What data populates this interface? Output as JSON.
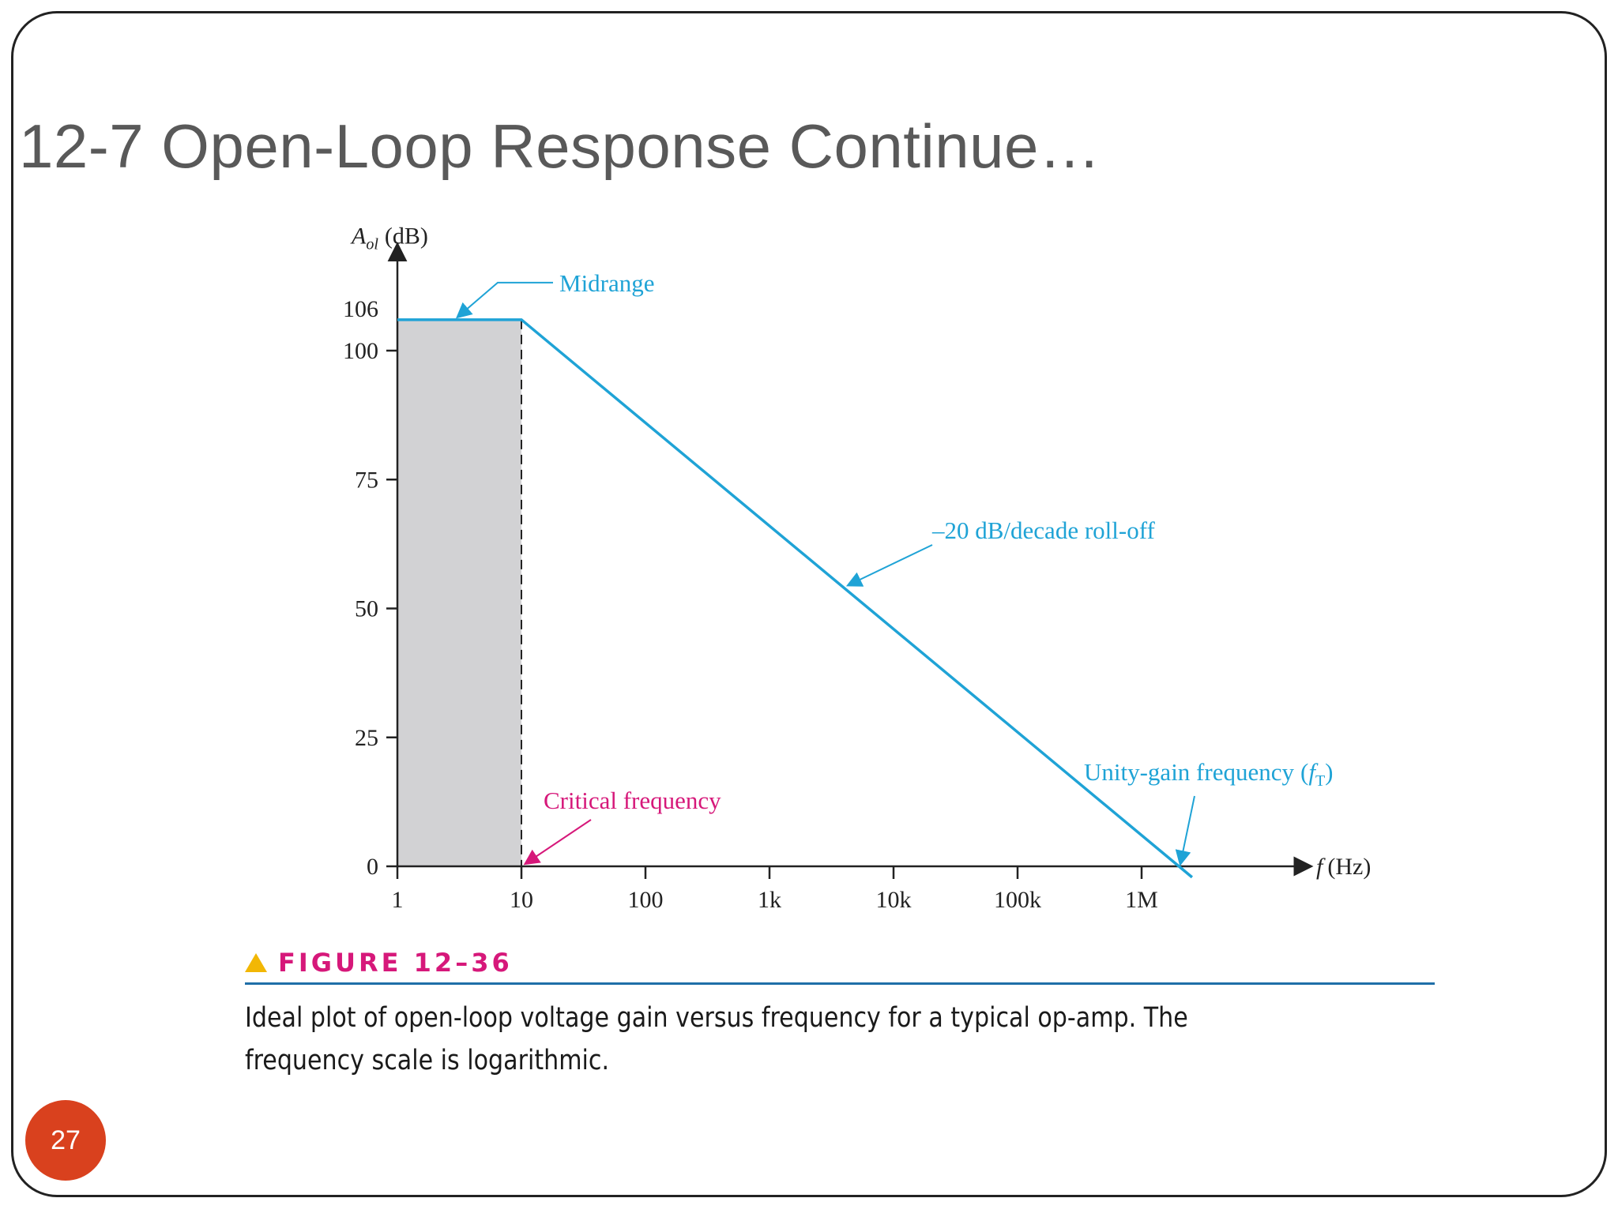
{
  "slide": {
    "title": "12-7  Open-Loop Response Continue…",
    "page_number": "27"
  },
  "figure": {
    "label": "FIGURE 12–36",
    "caption": "Ideal plot of open-loop voltage gain versus frequency for a typical op-amp. The frequency scale is logarithmic."
  },
  "colors": {
    "curve": "#1fa3d6",
    "critical": "#d6187a",
    "shade": "#d2d2d4",
    "figure_label": "#d6187a",
    "badge": "#d9411e"
  },
  "chart_data": {
    "type": "line",
    "xscale": "log",
    "xlabel_var": "f",
    "xlabel_unit": "(Hz)",
    "ylabel_var": "A",
    "ylabel_sub": "ol",
    "ylabel_unit": "(dB)",
    "xlim": [
      1,
      3000000
    ],
    "ylim": [
      0,
      110
    ],
    "x_ticks": [
      {
        "value": 1,
        "label": "1"
      },
      {
        "value": 10,
        "label": "10"
      },
      {
        "value": 100,
        "label": "100"
      },
      {
        "value": 1000,
        "label": "1k"
      },
      {
        "value": 10000,
        "label": "10k"
      },
      {
        "value": 100000,
        "label": "100k"
      },
      {
        "value": 1000000,
        "label": "1M"
      }
    ],
    "y_ticks": [
      {
        "value": 0,
        "label": "0"
      },
      {
        "value": 25,
        "label": "25"
      },
      {
        "value": 50,
        "label": "50"
      },
      {
        "value": 75,
        "label": "75"
      },
      {
        "value": 100,
        "label": "100"
      },
      {
        "value": 106,
        "label": "106"
      }
    ],
    "series": [
      {
        "x": [
          1,
          10,
          2000000
        ],
        "y": [
          106,
          106,
          0
        ]
      }
    ],
    "shaded_region": {
      "x": [
        1,
        10
      ],
      "y": [
        0,
        106
      ]
    },
    "critical_frequency": 10,
    "unity_gain_frequency": 2000000,
    "annotations": {
      "midrange": "Midrange",
      "rolloff": "–20 dB/decade roll-off",
      "unity_gain": "Unity-gain frequency",
      "unity_gain_var": "f",
      "unity_gain_sub": "T",
      "critical": "Critical frequency"
    }
  }
}
